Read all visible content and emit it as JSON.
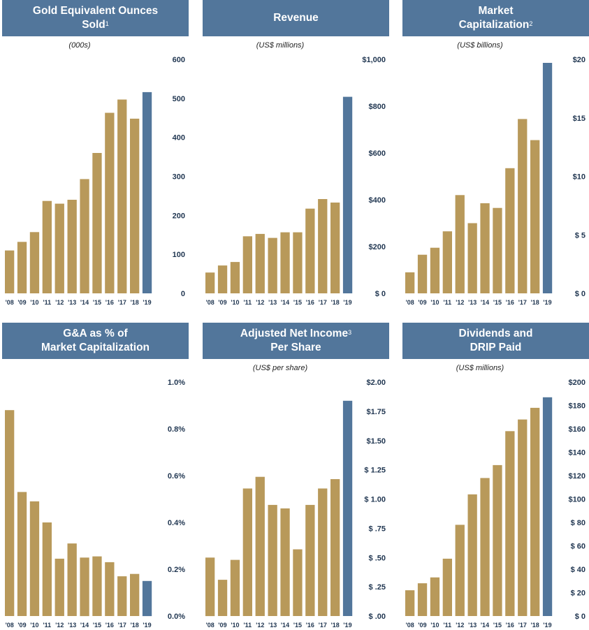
{
  "colors": {
    "header": "#52769b",
    "bar": "#b8995a",
    "highlight": "#52769b",
    "label": "#1f3550"
  },
  "years": [
    "'08",
    "'09",
    "'10",
    "'11",
    "'12",
    "'13",
    "'14",
    "'15",
    "'16",
    "'17",
    "'18",
    "'19"
  ],
  "chart_data": [
    {
      "id": "gold",
      "type": "bar",
      "title_line1": "Gold Equivalent Ounces",
      "title_line2": "Sold",
      "title_sup": "1",
      "unit": "(000s)",
      "categories": [
        "'08",
        "'09",
        "'10",
        "'11",
        "'12",
        "'13",
        "'14",
        "'15",
        "'16",
        "'17",
        "'18",
        "'19"
      ],
      "values": [
        110,
        132,
        157,
        237,
        230,
        240,
        293,
        360,
        463,
        497,
        448,
        516
      ],
      "ylim": [
        0,
        600
      ],
      "yticks": [
        0,
        100,
        200,
        300,
        400,
        500,
        600
      ],
      "ytick_labels": [
        "0",
        "100",
        "200",
        "300",
        "400",
        "500",
        "600"
      ]
    },
    {
      "id": "revenue",
      "type": "bar",
      "title_line1": "Revenue",
      "title_line2": "",
      "title_sup": "",
      "unit": "(US$ millions)",
      "categories": [
        "'08",
        "'09",
        "'10",
        "'11",
        "'12",
        "'13",
        "'14",
        "'15",
        "'16",
        "'17",
        "'18",
        "'19"
      ],
      "values": [
        89,
        119,
        134,
        244,
        254,
        237,
        261,
        261,
        362,
        403,
        388,
        840
      ],
      "ylim": [
        0,
        1000
      ],
      "yticks": [
        0,
        200,
        400,
        600,
        800,
        1000
      ],
      "ytick_labels": [
        "$ 0",
        "$200",
        "$400",
        "$600",
        "$800",
        "$1,000"
      ]
    },
    {
      "id": "marketcap",
      "type": "bar",
      "title_line1": "Market",
      "title_line2": "Capitalization",
      "title_sup": "2",
      "unit": "(US$ billions)",
      "categories": [
        "'08",
        "'09",
        "'10",
        "'11",
        "'12",
        "'13",
        "'14",
        "'15",
        "'16",
        "'17",
        "'18",
        "'19"
      ],
      "values": [
        1.8,
        3.3,
        3.9,
        5.3,
        8.4,
        6.0,
        7.7,
        7.3,
        10.7,
        14.9,
        13.1,
        19.7
      ],
      "ylim": [
        0,
        20
      ],
      "yticks": [
        0,
        5,
        10,
        15,
        20
      ],
      "ytick_labels": [
        "$ 0",
        "$ 5",
        "$10",
        "$15",
        "$20"
      ]
    },
    {
      "id": "ga",
      "type": "bar",
      "title_line1": "G&A as % of",
      "title_line2": "Market Capitalization",
      "title_sup": "",
      "unit": "",
      "categories": [
        "'08",
        "'09",
        "'10",
        "'11",
        "'12",
        "'13",
        "'14",
        "'15",
        "'16",
        "'17",
        "'18",
        "'19"
      ],
      "values": [
        0.88,
        0.53,
        0.49,
        0.4,
        0.245,
        0.31,
        0.25,
        0.255,
        0.23,
        0.17,
        0.18,
        0.15
      ],
      "ylim": [
        0,
        1.0
      ],
      "yticks": [
        0,
        0.2,
        0.4,
        0.6,
        0.8,
        1.0
      ],
      "ytick_labels": [
        "0.0%",
        "0.2%",
        "0.4%",
        "0.6%",
        "0.8%",
        "1.0%"
      ]
    },
    {
      "id": "netincome",
      "type": "bar",
      "title_line1": "Adjusted Net Income",
      "title_line2": "Per Share",
      "title_sup": "3",
      "unit": "(US$ per share)",
      "categories": [
        "'08",
        "'09",
        "'10",
        "'11",
        "'12",
        "'13",
        "'14",
        "'15",
        "'16",
        "'17",
        "'18",
        "'19"
      ],
      "values": [
        0.5,
        0.31,
        0.48,
        1.09,
        1.19,
        0.95,
        0.92,
        0.57,
        0.95,
        1.09,
        1.17,
        1.84
      ],
      "ylim": [
        0,
        2.0
      ],
      "yticks": [
        0,
        0.25,
        0.5,
        0.75,
        1.0,
        1.25,
        1.5,
        1.75,
        2.0
      ],
      "ytick_labels": [
        "$ .00",
        "$ .25",
        "$ .50",
        "$ .75",
        "$ 1.00",
        "$ 1.25",
        "$1.50",
        "$1.75",
        "$2.00"
      ]
    },
    {
      "id": "dividends",
      "type": "bar",
      "title_line1": "Dividends and",
      "title_line2": "DRIP Paid",
      "title_sup": "",
      "unit": "(US$ millions)",
      "categories": [
        "'08",
        "'09",
        "'10",
        "'11",
        "'12",
        "'13",
        "'14",
        "'15",
        "'16",
        "'17",
        "'18",
        "'19"
      ],
      "values": [
        22,
        28,
        33,
        49,
        78,
        104,
        118,
        129,
        158,
        168,
        178,
        187
      ],
      "ylim": [
        0,
        200
      ],
      "yticks": [
        0,
        20,
        40,
        60,
        80,
        100,
        120,
        140,
        160,
        180,
        200
      ],
      "ytick_labels": [
        "$ 0",
        "$ 20",
        "$ 40",
        "$ 60",
        "$ 80",
        "$100",
        "$120",
        "$140",
        "$160",
        "$180",
        "$200"
      ]
    }
  ]
}
